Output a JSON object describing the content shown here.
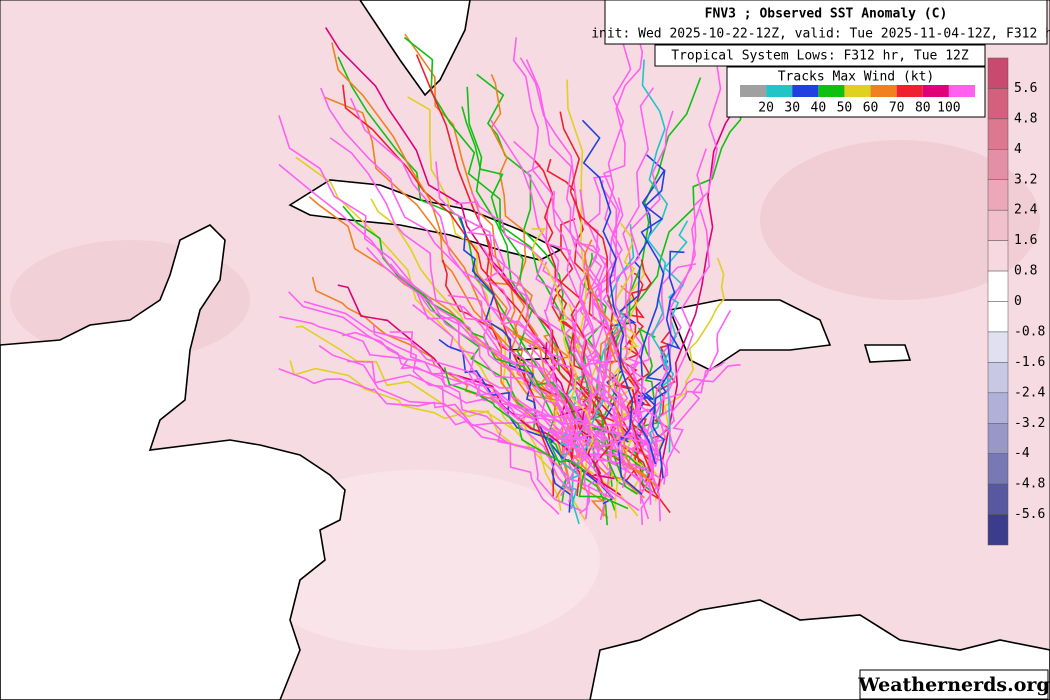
{
  "header": {
    "title": "FNV3 ; Observed SST Anomaly (C)",
    "subtitle": "init: Wed 2025-10-22-12Z, valid: Tue 2025-11-04-12Z, F312 hr"
  },
  "tracks_box": {
    "title": "Tropical System Lows: F312 hr, Tue 12Z"
  },
  "wind_legend": {
    "title": "Tracks Max Wind (kt)",
    "labels": [
      "20",
      "30",
      "40",
      "50",
      "60",
      "70",
      "80",
      "100"
    ],
    "colors": [
      "#a0a0a0",
      "#22c4c8",
      "#2040e0",
      "#10c010",
      "#e0d020",
      "#f08020",
      "#f02030",
      "#e0007a",
      "#ff60f0"
    ]
  },
  "colorbar": {
    "labels": [
      "5.6",
      "4.8",
      "4",
      "3.2",
      "2.4",
      "1.6",
      "0.8",
      "0",
      "-0.8",
      "-1.6",
      "-2.4",
      "-3.2",
      "-4",
      "-4.8",
      "-5.6"
    ],
    "colors": [
      "#c84a6e",
      "#d4607e",
      "#dc7890",
      "#e490a4",
      "#eca8b8",
      "#f2c0cc",
      "#f8d8e0",
      "#ffffff",
      "#ffffff",
      "#e0e0f0",
      "#c8c8e4",
      "#b0b0d8",
      "#9898c8",
      "#7878b4",
      "#5858a0",
      "#3c3c8c"
    ]
  },
  "watermark": "Weathernerds.org"
}
